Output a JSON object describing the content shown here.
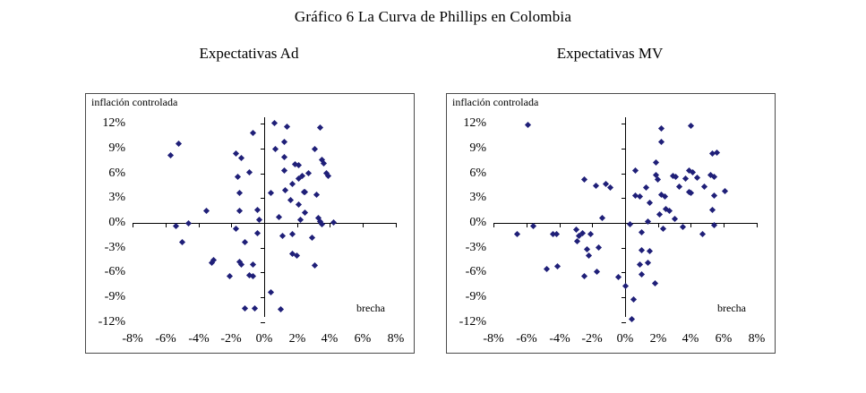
{
  "title": "Gráfico 6 La Curva de Phillips en Colombia",
  "colors": {
    "marker": "#1f1f78",
    "axis": "#000000"
  },
  "chart_data": [
    {
      "type": "scatter",
      "title": "Expectativas Ad",
      "inner_ylabel": "inflación controlada",
      "inner_xlabel": "brecha",
      "xlim": [
        -8,
        8
      ],
      "ylim": [
        -12,
        12
      ],
      "grid": false,
      "legend": "none",
      "x_ticks": [
        -8,
        -6,
        -4,
        -2,
        0,
        2,
        4,
        6,
        8
      ],
      "x_tick_labels": [
        "-8%",
        "-6%",
        "-4%",
        "-2%",
        "0%",
        "2%",
        "4%",
        "6%",
        "8%"
      ],
      "y_ticks": [
        12,
        9,
        6,
        3,
        0,
        -3,
        -6,
        -9,
        -12
      ],
      "y_tick_labels": [
        "12%",
        "9%",
        "6%",
        "3%",
        "0%",
        "-3%",
        "-6%",
        "-9%",
        "-12%"
      ],
      "points": [
        [
          0.6,
          12.1
        ],
        [
          1.4,
          11.7
        ],
        [
          3.4,
          11.6
        ],
        [
          -0.7,
          10.9
        ],
        [
          1.2,
          9.8
        ],
        [
          -5.2,
          9.6
        ],
        [
          0.7,
          8.9
        ],
        [
          3.1,
          8.9
        ],
        [
          -1.7,
          8.4
        ],
        [
          -5.7,
          8.2
        ],
        [
          1.2,
          8.0
        ],
        [
          -1.4,
          7.9
        ],
        [
          3.5,
          7.7
        ],
        [
          3.6,
          7.2
        ],
        [
          1.9,
          7.1
        ],
        [
          2.1,
          7.0
        ],
        [
          1.2,
          6.3
        ],
        [
          -0.9,
          6.1
        ],
        [
          2.7,
          6.0
        ],
        [
          3.8,
          6.0
        ],
        [
          3.9,
          5.7
        ],
        [
          -1.6,
          5.6
        ],
        [
          2.3,
          5.7
        ],
        [
          2.1,
          5.4
        ],
        [
          1.7,
          4.7
        ],
        [
          1.3,
          4.0
        ],
        [
          2.4,
          3.8
        ],
        [
          2.5,
          3.7
        ],
        [
          -1.5,
          3.6
        ],
        [
          0.4,
          3.6
        ],
        [
          3.2,
          3.4
        ],
        [
          1.6,
          2.8
        ],
        [
          2.1,
          2.2
        ],
        [
          -3.5,
          1.5
        ],
        [
          -1.5,
          1.5
        ],
        [
          -0.4,
          1.6
        ],
        [
          2.5,
          1.3
        ],
        [
          0.9,
          0.7
        ],
        [
          -0.3,
          0.4
        ],
        [
          2.2,
          0.4
        ],
        [
          3.3,
          0.6
        ],
        [
          3.4,
          0.2
        ],
        [
          3.5,
          -0.2
        ],
        [
          4.2,
          0.1
        ],
        [
          -4.6,
          -0.1
        ],
        [
          -5.4,
          -0.4
        ],
        [
          -1.7,
          -0.7
        ],
        [
          -0.4,
          -1.2
        ],
        [
          1.7,
          -1.3
        ],
        [
          1.1,
          -1.6
        ],
        [
          2.9,
          -1.8
        ],
        [
          -5.0,
          -2.3
        ],
        [
          -1.2,
          -2.3
        ],
        [
          1.7,
          -3.7
        ],
        [
          2.0,
          -3.9
        ],
        [
          -3.1,
          -4.5
        ],
        [
          -3.2,
          -4.8
        ],
        [
          -1.5,
          -4.7
        ],
        [
          -1.4,
          -5.0
        ],
        [
          -0.7,
          -5.0
        ],
        [
          3.1,
          -5.2
        ],
        [
          -2.1,
          -6.4
        ],
        [
          -0.9,
          -6.3
        ],
        [
          -0.7,
          -6.5
        ],
        [
          0.4,
          -8.4
        ],
        [
          -1.2,
          -10.4
        ],
        [
          -0.6,
          -10.4
        ],
        [
          1.0,
          -10.5
        ]
      ]
    },
    {
      "type": "scatter",
      "title": "Expectativas MV",
      "inner_ylabel": "inflación controlada",
      "inner_xlabel": "brecha",
      "xlim": [
        -8,
        8
      ],
      "ylim": [
        -12,
        12
      ],
      "grid": false,
      "legend": "none",
      "x_ticks": [
        -8,
        -6,
        -4,
        -2,
        0,
        2,
        4,
        6,
        8
      ],
      "x_tick_labels": [
        "-8%",
        "-6%",
        "-4%",
        "-2%",
        "0%",
        "2%",
        "4%",
        "6%",
        "8%"
      ],
      "y_ticks": [
        12,
        9,
        6,
        3,
        0,
        -3,
        -6,
        -9,
        -12
      ],
      "y_tick_labels": [
        "12%",
        "9%",
        "6%",
        "3%",
        "0%",
        "-3%",
        "-6%",
        "-9%",
        "-12%"
      ],
      "points": [
        [
          -5.9,
          11.9
        ],
        [
          4.0,
          11.8
        ],
        [
          2.2,
          11.5
        ],
        [
          2.2,
          9.8
        ],
        [
          5.3,
          8.4
        ],
        [
          5.6,
          8.5
        ],
        [
          1.9,
          7.3
        ],
        [
          0.6,
          6.3
        ],
        [
          3.9,
          6.4
        ],
        [
          4.1,
          6.1
        ],
        [
          2.9,
          5.7
        ],
        [
          3.1,
          5.6
        ],
        [
          3.7,
          5.4
        ],
        [
          4.4,
          5.5
        ],
        [
          5.2,
          5.8
        ],
        [
          5.4,
          5.6
        ],
        [
          1.9,
          5.8
        ],
        [
          2.0,
          5.3
        ],
        [
          -2.5,
          5.3
        ],
        [
          -1.8,
          4.5
        ],
        [
          -1.2,
          4.7
        ],
        [
          -0.9,
          4.3
        ],
        [
          1.3,
          4.3
        ],
        [
          3.3,
          4.4
        ],
        [
          4.8,
          4.4
        ],
        [
          3.9,
          3.8
        ],
        [
          4.0,
          3.6
        ],
        [
          6.1,
          3.9
        ],
        [
          0.6,
          3.3
        ],
        [
          0.9,
          3.2
        ],
        [
          2.2,
          3.4
        ],
        [
          2.4,
          3.2
        ],
        [
          5.4,
          3.3
        ],
        [
          1.5,
          2.5
        ],
        [
          2.5,
          1.7
        ],
        [
          2.7,
          1.5
        ],
        [
          2.1,
          1.0
        ],
        [
          5.3,
          1.6
        ],
        [
          -1.4,
          0.6
        ],
        [
          3.0,
          0.5
        ],
        [
          1.4,
          0.2
        ],
        [
          0.3,
          -0.2
        ],
        [
          -5.6,
          -0.4
        ],
        [
          2.3,
          -0.7
        ],
        [
          3.5,
          -0.5
        ],
        [
          5.4,
          -0.3
        ],
        [
          -6.6,
          -1.4
        ],
        [
          -4.4,
          -1.4
        ],
        [
          -4.2,
          -1.3
        ],
        [
          -3.0,
          -0.8
        ],
        [
          -2.8,
          -1.6
        ],
        [
          -2.6,
          -1.2
        ],
        [
          -2.1,
          -1.4
        ],
        [
          1.0,
          -1.1
        ],
        [
          4.7,
          -1.3
        ],
        [
          -2.9,
          -2.2
        ],
        [
          -2.3,
          -3.2
        ],
        [
          -1.6,
          -3.0
        ],
        [
          1.0,
          -3.3
        ],
        [
          1.5,
          -3.4
        ],
        [
          -2.2,
          -3.9
        ],
        [
          -4.8,
          -5.6
        ],
        [
          -4.1,
          -5.3
        ],
        [
          1.4,
          -4.8
        ],
        [
          0.9,
          -5.0
        ],
        [
          -1.7,
          -5.9
        ],
        [
          -2.5,
          -6.4
        ],
        [
          1.0,
          -6.2
        ],
        [
          -0.4,
          -6.6
        ],
        [
          0.0,
          -7.6
        ],
        [
          1.8,
          -7.3
        ],
        [
          0.5,
          -9.3
        ],
        [
          0.4,
          -11.7
        ]
      ]
    }
  ]
}
